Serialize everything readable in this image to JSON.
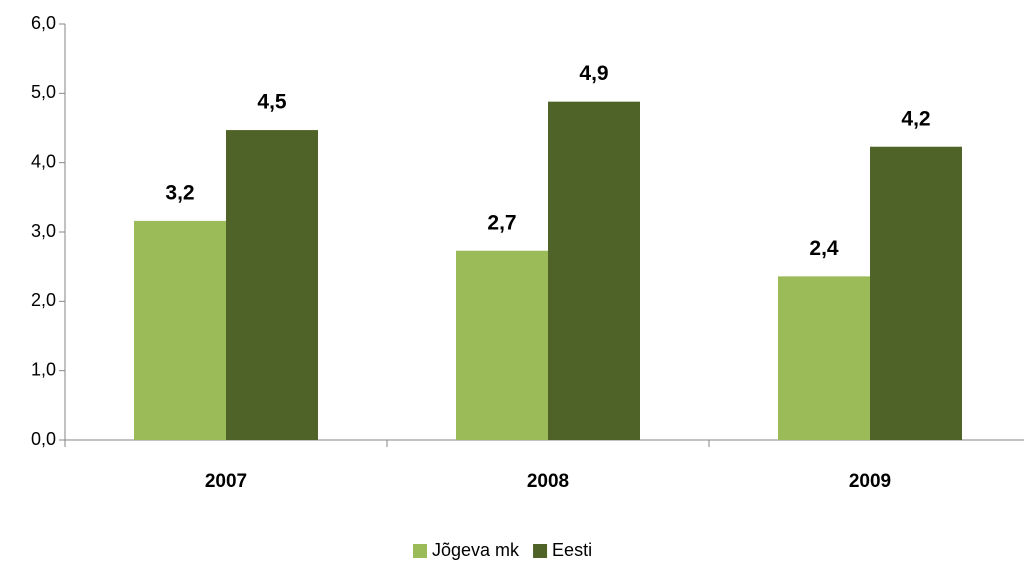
{
  "chart_data": {
    "type": "bar",
    "categories": [
      "2007",
      "2008",
      "2009"
    ],
    "series": [
      {
        "name": "Jõgeva mk",
        "color": "#9bbb59",
        "values": [
          3.16,
          2.73,
          2.36
        ],
        "value_labels": [
          "3,2",
          "2,7",
          "2,4"
        ]
      },
      {
        "name": "Eesti",
        "color": "#4f6228",
        "values": [
          4.47,
          4.88,
          4.23
        ],
        "value_labels": [
          "4,5",
          "4,9",
          "4,2"
        ]
      }
    ],
    "ylim": [
      0,
      6
    ],
    "yticks": [
      {
        "value": 0,
        "label": "0,0"
      },
      {
        "value": 1,
        "label": "1,0"
      },
      {
        "value": 2,
        "label": "2,0"
      },
      {
        "value": 3,
        "label": "3,0"
      },
      {
        "value": 4,
        "label": "4,0"
      },
      {
        "value": 5,
        "label": "5,0"
      },
      {
        "value": 6,
        "label": "6,0"
      }
    ],
    "grid": false,
    "legend": "bottom"
  }
}
